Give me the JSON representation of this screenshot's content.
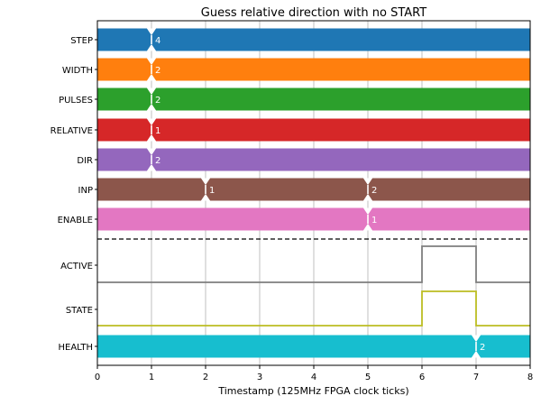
{
  "chart_data": {
    "type": "timing",
    "title": "Guess relative direction with no START",
    "xlabel": "Timestamp (125MHz FPGA clock ticks)",
    "xlim": [
      0,
      8
    ],
    "xticks": [
      "0",
      "1",
      "2",
      "3",
      "4",
      "5",
      "6",
      "7",
      "8"
    ],
    "grid": true,
    "bus_signals": [
      {
        "name": "STEP",
        "color": "#1f77b4",
        "transitions": [
          {
            "x": 1,
            "value": "4"
          }
        ]
      },
      {
        "name": "WIDTH",
        "color": "#ff7f0e",
        "transitions": [
          {
            "x": 1,
            "value": "2"
          }
        ]
      },
      {
        "name": "PULSES",
        "color": "#2ca02c",
        "transitions": [
          {
            "x": 1,
            "value": "2"
          }
        ]
      },
      {
        "name": "RELATIVE",
        "color": "#d62728",
        "transitions": [
          {
            "x": 1,
            "value": "1"
          }
        ]
      },
      {
        "name": "DIR",
        "color": "#9467bd",
        "transitions": [
          {
            "x": 1,
            "value": "2"
          }
        ]
      },
      {
        "name": "INP",
        "color": "#8c564b",
        "transitions": [
          {
            "x": 2,
            "value": "1"
          },
          {
            "x": 5,
            "value": "2"
          }
        ]
      },
      {
        "name": "ENABLE",
        "color": "#e377c2",
        "transitions": [
          {
            "x": 5,
            "value": "1"
          }
        ]
      }
    ],
    "bit_signals": [
      {
        "name": "ACTIVE",
        "color": "#7f7f7f",
        "steps": [
          {
            "x": 0,
            "y": 0
          },
          {
            "x": 6,
            "y": 1
          },
          {
            "x": 7,
            "y": 0
          },
          {
            "x": 8,
            "y": 0
          }
        ]
      },
      {
        "name": "STATE",
        "color": "#bcbd22",
        "steps": [
          {
            "x": 0,
            "y": 0
          },
          {
            "x": 6,
            "y": 1
          },
          {
            "x": 7,
            "y": 0
          },
          {
            "x": 8,
            "y": 0
          }
        ]
      }
    ],
    "trailing_bus_signals": [
      {
        "name": "HEALTH",
        "color": "#17becf",
        "transitions": [
          {
            "x": 7,
            "value": "2"
          }
        ]
      }
    ]
  }
}
